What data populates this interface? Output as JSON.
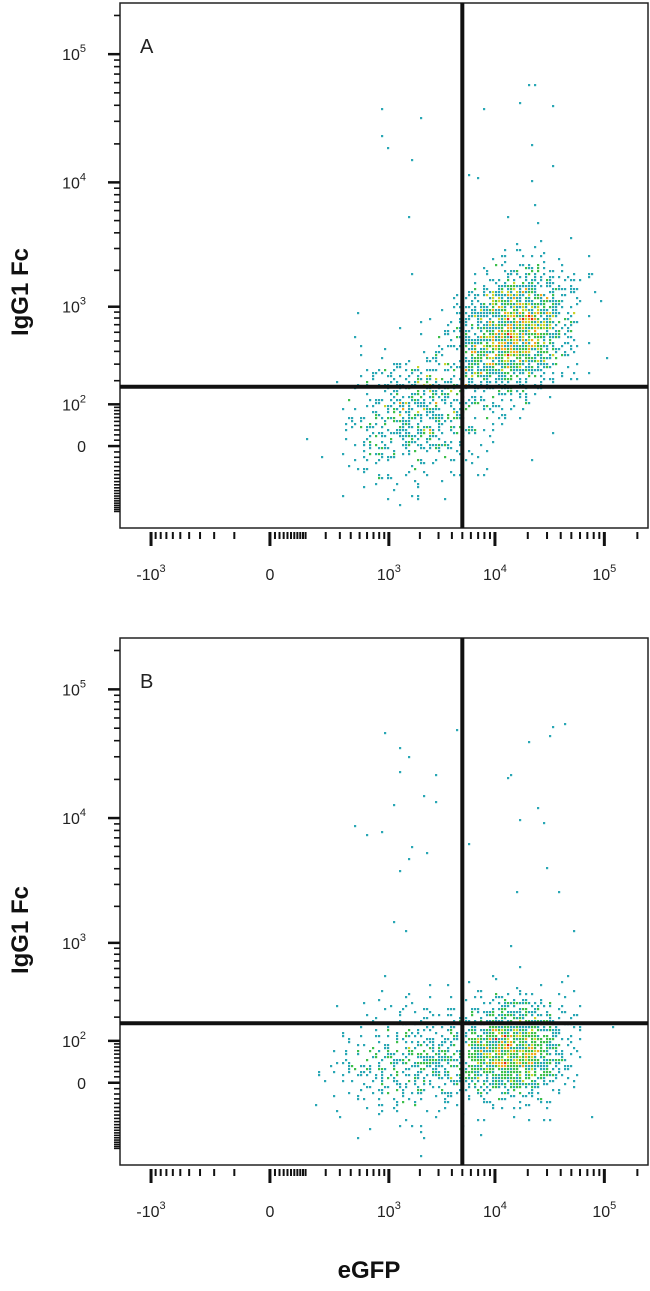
{
  "chart_data": [
    {
      "type": "scatter",
      "panel_label": "A",
      "title": "",
      "xlabel": "eGFP",
      "ylabel": "IgG1 Fc",
      "x_scale": "biexponential",
      "y_scale": "biexponential",
      "x_tick_labels": [
        "-10^3",
        "0",
        "10^3",
        "10^4",
        "10^5"
      ],
      "x_tick_values": [
        -1000,
        0,
        1000,
        10000,
        100000
      ],
      "y_tick_labels": [
        "0",
        "10^2",
        "10^3",
        "10^4",
        "10^5"
      ],
      "y_tick_values": [
        0,
        100,
        1000,
        10000,
        100000
      ],
      "xlim": [
        -2000,
        250000
      ],
      "ylim": [
        -300,
        250000
      ],
      "quadrant_gate": {
        "x": 5000,
        "y": 170
      },
      "populations": [
        {
          "name": "",
          "center": [
            15000,
            600
          ],
          "spread": [
            0.28,
            0.22
          ],
          "count": 1700,
          "angle": 0.6
        },
        {
          "name": "",
          "center": [
            2000,
            70
          ],
          "spread": [
            0.32,
            0.24
          ],
          "count": 650,
          "angle": 0.3
        }
      ],
      "grid": false,
      "legend": "none"
    },
    {
      "type": "scatter",
      "panel_label": "B",
      "title": "",
      "xlabel": "eGFP",
      "ylabel": "IgG1 Fc",
      "x_scale": "biexponential",
      "y_scale": "biexponential",
      "x_tick_labels": [
        "-10^3",
        "0",
        "10^3",
        "10^4",
        "10^5"
      ],
      "x_tick_values": [
        -1000,
        0,
        1000,
        10000,
        100000
      ],
      "y_tick_labels": [
        "0",
        "10^2",
        "10^3",
        "10^4",
        "10^5"
      ],
      "y_tick_values": [
        0,
        100,
        1000,
        10000,
        100000
      ],
      "xlim": [
        -2000,
        250000
      ],
      "ylim": [
        -300,
        250000
      ],
      "quadrant_gate": {
        "x": 5000,
        "y": 170
      },
      "populations": [
        {
          "name": "",
          "center": [
            14000,
            70
          ],
          "spread": [
            0.25,
            0.18
          ],
          "count": 1500,
          "angle": 0.1
        },
        {
          "name": "",
          "center": [
            1800,
            45
          ],
          "spread": [
            0.35,
            0.22
          ],
          "count": 500,
          "angle": 0.05
        }
      ],
      "grid": false,
      "legend": "none"
    }
  ],
  "density_colors": [
    "#2b3f9e",
    "#2f6bbf",
    "#29a7b5",
    "#3cbf4a",
    "#c9d42a",
    "#f2a51f",
    "#e3241b"
  ]
}
